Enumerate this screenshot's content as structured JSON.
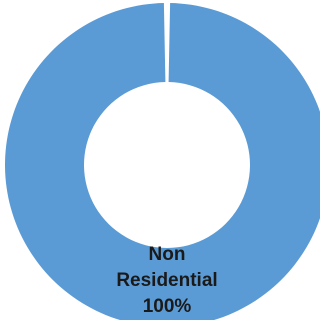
{
  "chart_data": {
    "type": "pie",
    "variant": "donut",
    "title": "",
    "slices": [
      {
        "name": "Non Residential",
        "value": 100,
        "label_lines": [
          "Non",
          "Residential",
          "100%"
        ],
        "color": "#5b9bd5"
      }
    ],
    "legend": "none"
  }
}
